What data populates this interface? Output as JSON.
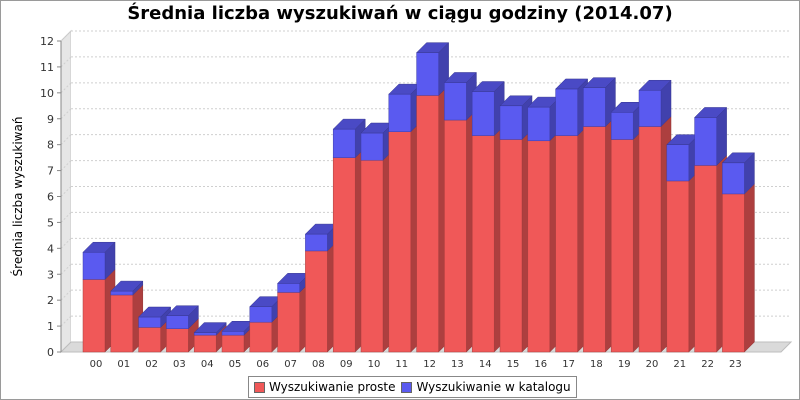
{
  "chart_data": {
    "type": "bar",
    "stacked": true,
    "title": "Średnia liczba wyszukiwań w ciągu godziny (2014.07)",
    "ylabel": "Średnia liczba wyszukiwań",
    "xlabel": "",
    "ylim": [
      0,
      12
    ],
    "yticks": [
      0,
      1,
      2,
      3,
      4,
      5,
      6,
      7,
      8,
      9,
      10,
      11,
      12
    ],
    "grid": true,
    "legend_position": "bottom",
    "categories": [
      "00",
      "01",
      "02",
      "03",
      "04",
      "05",
      "06",
      "07",
      "08",
      "09",
      "10",
      "11",
      "12",
      "13",
      "14",
      "15",
      "16",
      "17",
      "18",
      "19",
      "20",
      "21",
      "22",
      "23"
    ],
    "series": [
      {
        "name": "Wyszukiwanie proste",
        "color": "#f05858",
        "values": [
          2.8,
          2.2,
          0.95,
          0.9,
          0.65,
          0.65,
          1.15,
          2.3,
          3.9,
          7.5,
          7.4,
          8.5,
          9.9,
          8.95,
          8.35,
          8.2,
          8.15,
          8.35,
          8.7,
          8.2,
          8.7,
          6.6,
          7.2,
          6.1
        ]
      },
      {
        "name": "Wyszukiwanie w katalogu",
        "color": "#5a5af0",
        "values": [
          1.05,
          0.15,
          0.4,
          0.5,
          0.1,
          0.15,
          0.6,
          0.35,
          0.65,
          1.1,
          1.05,
          1.45,
          1.65,
          1.45,
          1.7,
          1.3,
          1.3,
          1.8,
          1.5,
          1.05,
          1.4,
          1.4,
          1.85,
          1.2
        ]
      }
    ]
  }
}
